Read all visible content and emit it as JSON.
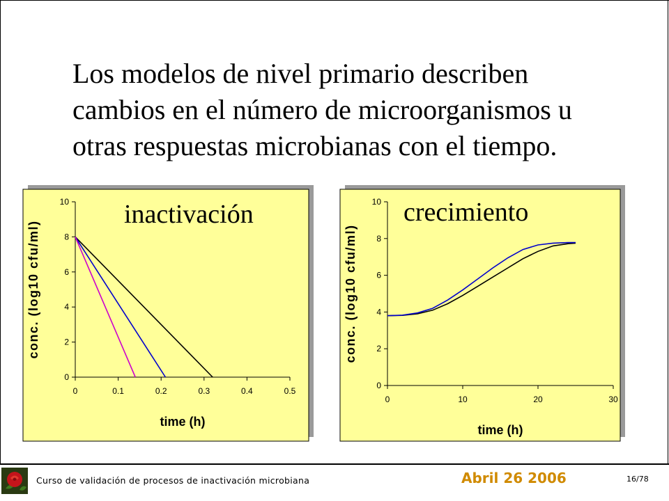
{
  "slide": {
    "title_lines": [
      "Los modelos de nivel primario describen",
      "cambios en el número de microorganismos u",
      "otras respuestas microbianas con el tiempo."
    ]
  },
  "footer": {
    "course": "Curso de validación de procesos de inactivación microbiana",
    "date": "Abril 26 2006",
    "page": "16/78"
  },
  "colors": {
    "plot_bg": "#ffff99",
    "footer_date": "#d08a00",
    "series_black": "#000000",
    "series_blue": "#0000cc",
    "series_magenta": "#cc00cc"
  },
  "chart_data": [
    {
      "type": "line",
      "title": "inactivación",
      "xlabel": "time (h)",
      "ylabel": "conc. (log10 cfu/ml)",
      "xlim": [
        0,
        0.5
      ],
      "ylim": [
        0,
        10
      ],
      "x_ticks": [
        "0",
        "0.1",
        "0.2",
        "0.3",
        "0.4",
        "0.5"
      ],
      "y_ticks": [
        "0",
        "2",
        "4",
        "6",
        "8",
        "10"
      ],
      "grid": false,
      "series": [
        {
          "color": "#000000",
          "x": [
            0,
            0.32
          ],
          "y": [
            8,
            0
          ]
        },
        {
          "color": "#0000cc",
          "x": [
            0,
            0.21
          ],
          "y": [
            8,
            0
          ]
        },
        {
          "color": "#cc00cc",
          "x": [
            0,
            0.14
          ],
          "y": [
            8,
            0
          ]
        }
      ]
    },
    {
      "type": "line",
      "title": "crecimiento",
      "xlabel": "time (h)",
      "ylabel": "conc. (log10 cfu/ml)",
      "xlim": [
        0,
        30
      ],
      "ylim": [
        0,
        10
      ],
      "x_ticks": [
        "0",
        "10",
        "20",
        "30"
      ],
      "y_ticks": [
        "0",
        "2",
        "4",
        "6",
        "8",
        "10"
      ],
      "grid": false,
      "series": [
        {
          "color": "#000000",
          "x": [
            0,
            2,
            4,
            6,
            8,
            10,
            12,
            14,
            16,
            18,
            20,
            22,
            24,
            25
          ],
          "y": [
            3.8,
            3.82,
            3.9,
            4.1,
            4.45,
            4.9,
            5.4,
            5.9,
            6.4,
            6.9,
            7.3,
            7.6,
            7.72,
            7.75
          ]
        },
        {
          "color": "#0000cc",
          "x": [
            0,
            2,
            4,
            6,
            8,
            10,
            12,
            14,
            16,
            18,
            20,
            22,
            24,
            25
          ],
          "y": [
            3.8,
            3.83,
            3.95,
            4.2,
            4.65,
            5.2,
            5.8,
            6.4,
            6.95,
            7.4,
            7.65,
            7.75,
            7.78,
            7.78
          ]
        }
      ]
    }
  ]
}
